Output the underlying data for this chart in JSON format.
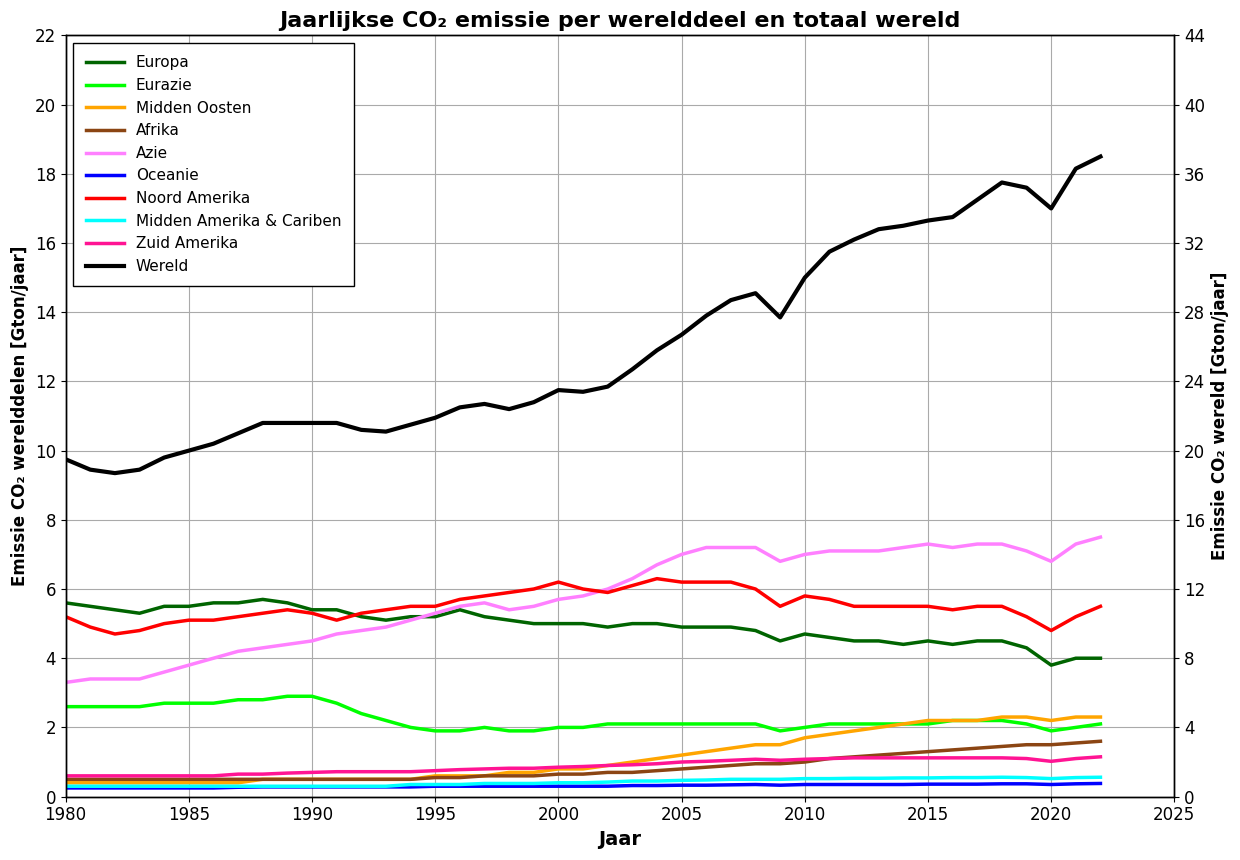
{
  "title": "Jaarlijkse CO₂ emissie per werelddeel en totaal wereld",
  "xlabel": "Jaar",
  "ylabel_left": "Emissie CO₂ werelddelen [Gton/jaar]",
  "ylabel_right": "Emissie CO₂ wereld [Gton/jaar]",
  "xlim": [
    1980,
    2025
  ],
  "ylim_left": [
    0,
    22
  ],
  "ylim_right": [
    0,
    44
  ],
  "yticks_left": [
    0,
    2,
    4,
    6,
    8,
    10,
    12,
    14,
    16,
    18,
    20,
    22
  ],
  "yticks_right": [
    0,
    4,
    8,
    12,
    16,
    20,
    24,
    28,
    32,
    36,
    40,
    44
  ],
  "xticks": [
    1980,
    1985,
    1990,
    1995,
    2000,
    2005,
    2010,
    2015,
    2020,
    2025
  ],
  "series": {
    "Europa": {
      "color": "#006400",
      "linewidth": 2.5,
      "axis": "left",
      "data_years": [
        1980,
        1981,
        1982,
        1983,
        1984,
        1985,
        1986,
        1987,
        1988,
        1989,
        1990,
        1991,
        1992,
        1993,
        1994,
        1995,
        1996,
        1997,
        1998,
        1999,
        2000,
        2001,
        2002,
        2003,
        2004,
        2005,
        2006,
        2007,
        2008,
        2009,
        2010,
        2011,
        2012,
        2013,
        2014,
        2015,
        2016,
        2017,
        2018,
        2019,
        2020,
        2021,
        2022
      ],
      "data_values": [
        5.6,
        5.5,
        5.4,
        5.3,
        5.5,
        5.5,
        5.6,
        5.6,
        5.7,
        5.6,
        5.4,
        5.4,
        5.2,
        5.1,
        5.2,
        5.2,
        5.4,
        5.2,
        5.1,
        5.0,
        5.0,
        5.0,
        4.9,
        5.0,
        5.0,
        4.9,
        4.9,
        4.9,
        4.8,
        4.5,
        4.7,
        4.6,
        4.5,
        4.5,
        4.4,
        4.5,
        4.4,
        4.5,
        4.5,
        4.3,
        3.8,
        4.0,
        4.0
      ]
    },
    "Eurazie": {
      "color": "#00ff00",
      "linewidth": 2.5,
      "axis": "left",
      "data_years": [
        1980,
        1981,
        1982,
        1983,
        1984,
        1985,
        1986,
        1987,
        1988,
        1989,
        1990,
        1991,
        1992,
        1993,
        1994,
        1995,
        1996,
        1997,
        1998,
        1999,
        2000,
        2001,
        2002,
        2003,
        2004,
        2005,
        2006,
        2007,
        2008,
        2009,
        2010,
        2011,
        2012,
        2013,
        2014,
        2015,
        2016,
        2017,
        2018,
        2019,
        2020,
        2021,
        2022
      ],
      "data_values": [
        2.6,
        2.6,
        2.6,
        2.6,
        2.7,
        2.7,
        2.7,
        2.8,
        2.8,
        2.9,
        2.9,
        2.7,
        2.4,
        2.2,
        2.0,
        1.9,
        1.9,
        2.0,
        1.9,
        1.9,
        2.0,
        2.0,
        2.1,
        2.1,
        2.1,
        2.1,
        2.1,
        2.1,
        2.1,
        1.9,
        2.0,
        2.1,
        2.1,
        2.1,
        2.1,
        2.1,
        2.2,
        2.2,
        2.2,
        2.1,
        1.9,
        2.0,
        2.1
      ]
    },
    "Midden Oosten": {
      "color": "#ffa500",
      "linewidth": 2.5,
      "axis": "left",
      "data_years": [
        1980,
        1981,
        1982,
        1983,
        1984,
        1985,
        1986,
        1987,
        1988,
        1989,
        1990,
        1991,
        1992,
        1993,
        1994,
        1995,
        1996,
        1997,
        1998,
        1999,
        2000,
        2001,
        2002,
        2003,
        2004,
        2005,
        2006,
        2007,
        2008,
        2009,
        2010,
        2011,
        2012,
        2013,
        2014,
        2015,
        2016,
        2017,
        2018,
        2019,
        2020,
        2021,
        2022
      ],
      "data_values": [
        0.4,
        0.4,
        0.4,
        0.4,
        0.4,
        0.4,
        0.4,
        0.4,
        0.5,
        0.5,
        0.5,
        0.5,
        0.5,
        0.5,
        0.5,
        0.6,
        0.6,
        0.6,
        0.7,
        0.7,
        0.8,
        0.8,
        0.9,
        1.0,
        1.1,
        1.2,
        1.3,
        1.4,
        1.5,
        1.5,
        1.7,
        1.8,
        1.9,
        2.0,
        2.1,
        2.2,
        2.2,
        2.2,
        2.3,
        2.3,
        2.2,
        2.3,
        2.3
      ]
    },
    "Afrika": {
      "color": "#8b4513",
      "linewidth": 2.5,
      "axis": "left",
      "data_years": [
        1980,
        1981,
        1982,
        1983,
        1984,
        1985,
        1986,
        1987,
        1988,
        1989,
        1990,
        1991,
        1992,
        1993,
        1994,
        1995,
        1996,
        1997,
        1998,
        1999,
        2000,
        2001,
        2002,
        2003,
        2004,
        2005,
        2006,
        2007,
        2008,
        2009,
        2010,
        2011,
        2012,
        2013,
        2014,
        2015,
        2016,
        2017,
        2018,
        2019,
        2020,
        2021,
        2022
      ],
      "data_values": [
        0.5,
        0.5,
        0.5,
        0.5,
        0.5,
        0.5,
        0.5,
        0.5,
        0.5,
        0.5,
        0.5,
        0.5,
        0.5,
        0.5,
        0.5,
        0.55,
        0.55,
        0.6,
        0.6,
        0.6,
        0.65,
        0.65,
        0.7,
        0.7,
        0.75,
        0.8,
        0.85,
        0.9,
        0.95,
        0.95,
        1.0,
        1.1,
        1.15,
        1.2,
        1.25,
        1.3,
        1.35,
        1.4,
        1.45,
        1.5,
        1.5,
        1.55,
        1.6
      ]
    },
    "Azie": {
      "color": "#ff80ff",
      "linewidth": 2.5,
      "axis": "left",
      "data_years": [
        1980,
        1981,
        1982,
        1983,
        1984,
        1985,
        1986,
        1987,
        1988,
        1989,
        1990,
        1991,
        1992,
        1993,
        1994,
        1995,
        1996,
        1997,
        1998,
        1999,
        2000,
        2001,
        2002,
        2003,
        2004,
        2005,
        2006,
        2007,
        2008,
        2009,
        2010,
        2011,
        2012,
        2013,
        2014,
        2015,
        2016,
        2017,
        2018,
        2019,
        2020,
        2021,
        2022
      ],
      "data_values": [
        3.3,
        3.4,
        3.4,
        3.4,
        3.6,
        3.8,
        4.0,
        4.2,
        4.3,
        4.4,
        4.5,
        4.7,
        4.8,
        4.9,
        5.1,
        5.3,
        5.5,
        5.6,
        5.4,
        5.5,
        5.7,
        5.8,
        6.0,
        6.3,
        6.7,
        7.0,
        7.2,
        7.2,
        7.2,
        6.8,
        7.0,
        7.1,
        7.1,
        7.1,
        7.2,
        7.3,
        7.2,
        7.3,
        7.3,
        7.1,
        6.8,
        7.3,
        7.5
      ]
    },
    "Oceanie": {
      "color": "#0000ff",
      "linewidth": 2.5,
      "axis": "left",
      "data_years": [
        1980,
        1981,
        1982,
        1983,
        1984,
        1985,
        1986,
        1987,
        1988,
        1989,
        1990,
        1991,
        1992,
        1993,
        1994,
        1995,
        1996,
        1997,
        1998,
        1999,
        2000,
        2001,
        2002,
        2003,
        2004,
        2005,
        2006,
        2007,
        2008,
        2009,
        2010,
        2011,
        2012,
        2013,
        2014,
        2015,
        2016,
        2017,
        2018,
        2019,
        2020,
        2021,
        2022
      ],
      "data_values": [
        0.25,
        0.25,
        0.25,
        0.25,
        0.25,
        0.25,
        0.25,
        0.27,
        0.28,
        0.28,
        0.28,
        0.28,
        0.28,
        0.28,
        0.28,
        0.3,
        0.3,
        0.3,
        0.3,
        0.3,
        0.3,
        0.3,
        0.3,
        0.32,
        0.32,
        0.33,
        0.33,
        0.34,
        0.35,
        0.33,
        0.35,
        0.35,
        0.35,
        0.35,
        0.35,
        0.36,
        0.36,
        0.36,
        0.37,
        0.37,
        0.35,
        0.37,
        0.38
      ]
    },
    "Noord Amerika": {
      "color": "#ff0000",
      "linewidth": 2.5,
      "axis": "left",
      "data_years": [
        1980,
        1981,
        1982,
        1983,
        1984,
        1985,
        1986,
        1987,
        1988,
        1989,
        1990,
        1991,
        1992,
        1993,
        1994,
        1995,
        1996,
        1997,
        1998,
        1999,
        2000,
        2001,
        2002,
        2003,
        2004,
        2005,
        2006,
        2007,
        2008,
        2009,
        2010,
        2011,
        2012,
        2013,
        2014,
        2015,
        2016,
        2017,
        2018,
        2019,
        2020,
        2021,
        2022
      ],
      "data_values": [
        5.2,
        4.9,
        4.7,
        4.8,
        5.0,
        5.1,
        5.1,
        5.2,
        5.3,
        5.4,
        5.3,
        5.1,
        5.3,
        5.4,
        5.5,
        5.5,
        5.7,
        5.8,
        5.9,
        6.0,
        6.2,
        6.0,
        5.9,
        6.1,
        6.3,
        6.2,
        6.2,
        6.2,
        6.0,
        5.5,
        5.8,
        5.7,
        5.5,
        5.5,
        5.5,
        5.5,
        5.4,
        5.5,
        5.5,
        5.2,
        4.8,
        5.2,
        5.5
      ]
    },
    "Midden Amerika & Cariben": {
      "color": "#00ffff",
      "linewidth": 2.5,
      "axis": "left",
      "data_years": [
        1980,
        1981,
        1982,
        1983,
        1984,
        1985,
        1986,
        1987,
        1988,
        1989,
        1990,
        1991,
        1992,
        1993,
        1994,
        1995,
        1996,
        1997,
        1998,
        1999,
        2000,
        2001,
        2002,
        2003,
        2004,
        2005,
        2006,
        2007,
        2008,
        2009,
        2010,
        2011,
        2012,
        2013,
        2014,
        2015,
        2016,
        2017,
        2018,
        2019,
        2020,
        2021,
        2022
      ],
      "data_values": [
        0.3,
        0.3,
        0.3,
        0.3,
        0.3,
        0.3,
        0.3,
        0.3,
        0.3,
        0.3,
        0.3,
        0.3,
        0.3,
        0.3,
        0.35,
        0.35,
        0.35,
        0.38,
        0.38,
        0.38,
        0.4,
        0.4,
        0.42,
        0.45,
        0.45,
        0.47,
        0.48,
        0.5,
        0.5,
        0.5,
        0.52,
        0.52,
        0.53,
        0.53,
        0.54,
        0.54,
        0.55,
        0.55,
        0.56,
        0.55,
        0.52,
        0.55,
        0.56
      ]
    },
    "Zuid Amerika": {
      "color": "#ff1493",
      "linewidth": 2.5,
      "axis": "left",
      "data_years": [
        1980,
        1981,
        1982,
        1983,
        1984,
        1985,
        1986,
        1987,
        1988,
        1989,
        1990,
        1991,
        1992,
        1993,
        1994,
        1995,
        1996,
        1997,
        1998,
        1999,
        2000,
        2001,
        2002,
        2003,
        2004,
        2005,
        2006,
        2007,
        2008,
        2009,
        2010,
        2011,
        2012,
        2013,
        2014,
        2015,
        2016,
        2017,
        2018,
        2019,
        2020,
        2021,
        2022
      ],
      "data_values": [
        0.6,
        0.6,
        0.6,
        0.6,
        0.6,
        0.6,
        0.6,
        0.65,
        0.65,
        0.68,
        0.7,
        0.72,
        0.72,
        0.72,
        0.72,
        0.75,
        0.78,
        0.8,
        0.82,
        0.82,
        0.85,
        0.87,
        0.9,
        0.92,
        0.95,
        1.0,
        1.02,
        1.05,
        1.08,
        1.05,
        1.08,
        1.1,
        1.12,
        1.12,
        1.12,
        1.12,
        1.12,
        1.12,
        1.12,
        1.1,
        1.02,
        1.1,
        1.15
      ]
    },
    "Wereld": {
      "color": "#000000",
      "linewidth": 3.0,
      "axis": "right",
      "data_years": [
        1980,
        1981,
        1982,
        1983,
        1984,
        1985,
        1986,
        1987,
        1988,
        1989,
        1990,
        1991,
        1992,
        1993,
        1994,
        1995,
        1996,
        1997,
        1998,
        1999,
        2000,
        2001,
        2002,
        2003,
        2004,
        2005,
        2006,
        2007,
        2008,
        2009,
        2010,
        2011,
        2012,
        2013,
        2014,
        2015,
        2016,
        2017,
        2018,
        2019,
        2020,
        2021,
        2022
      ],
      "data_values": [
        19.5,
        18.9,
        18.7,
        18.9,
        19.6,
        20.0,
        20.4,
        21.0,
        21.6,
        21.6,
        21.6,
        21.6,
        21.2,
        21.1,
        21.5,
        21.9,
        22.5,
        22.7,
        22.4,
        22.8,
        23.5,
        23.4,
        23.7,
        24.7,
        25.8,
        26.7,
        27.8,
        28.7,
        29.1,
        27.7,
        30.0,
        31.5,
        32.2,
        32.8,
        33.0,
        33.3,
        33.5,
        34.5,
        35.5,
        35.2,
        34.0,
        36.3,
        37.0
      ]
    }
  }
}
